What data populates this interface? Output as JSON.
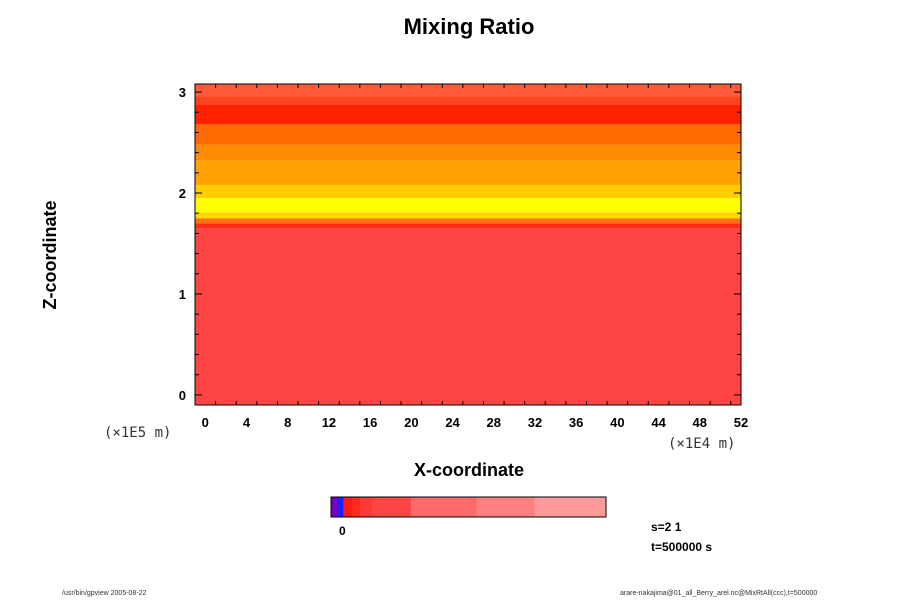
{
  "chart_data": {
    "type": "heatmap",
    "title": "Mixing Ratio",
    "xlabel": "X-coordinate",
    "ylabel": "Z-coordinate",
    "x_unit": "(×1E4 m)",
    "y_unit": "(×1E5 m)",
    "xlim": [
      -1,
      52
    ],
    "ylim": [
      -0.1,
      3.08
    ],
    "x_ticks": [
      0,
      4,
      8,
      12,
      16,
      20,
      24,
      28,
      32,
      36,
      40,
      44,
      48,
      52
    ],
    "y_ticks": [
      0,
      1,
      2,
      3
    ],
    "x_minor_step": 2,
    "y_minor_step": 0.2,
    "layers": [
      {
        "z0": -0.1,
        "z1": 1.65,
        "color": "#ff4444"
      },
      {
        "z0": 1.65,
        "z1": 1.7,
        "color": "#ff2a1a"
      },
      {
        "z0": 1.7,
        "z1": 1.75,
        "color": "#ff7010"
      },
      {
        "z0": 1.75,
        "z1": 1.81,
        "color": "#ffd800"
      },
      {
        "z0": 1.81,
        "z1": 1.95,
        "color": "#ffff00"
      },
      {
        "z0": 1.95,
        "z1": 2.08,
        "color": "#ffcc00"
      },
      {
        "z0": 2.08,
        "z1": 2.32,
        "color": "#ffa200"
      },
      {
        "z0": 2.32,
        "z1": 2.48,
        "color": "#ff8c00"
      },
      {
        "z0": 2.48,
        "z1": 2.68,
        "color": "#ff6a00"
      },
      {
        "z0": 2.68,
        "z1": 2.88,
        "color": "#ff2200"
      },
      {
        "z0": 2.88,
        "z1": 2.96,
        "color": "#ff4422"
      },
      {
        "z0": 2.96,
        "z1": 3.08,
        "color": "#ff5a3a"
      }
    ],
    "colorbar": {
      "colors": [
        "#7a00c8",
        "#2020ff",
        "#ff1a1a",
        "#ff2a1a",
        "#ff3a34",
        "#ff4444",
        "#ff6a6a",
        "#ff8080",
        "#ff9a9a"
      ],
      "fractions": [
        0.025,
        0.02,
        0.03,
        0.03,
        0.045,
        0.14,
        0.24,
        0.21,
        0.26
      ],
      "label": "0"
    }
  },
  "info": {
    "s": "s=2 1",
    "t": "t=500000 s"
  },
  "footer": {
    "left": "/usr/bin/gpview 2005-08-22",
    "right": "arare-nakajima@01_all_Berry_arel.nc@MixRtAll(ccc),t=500000"
  }
}
